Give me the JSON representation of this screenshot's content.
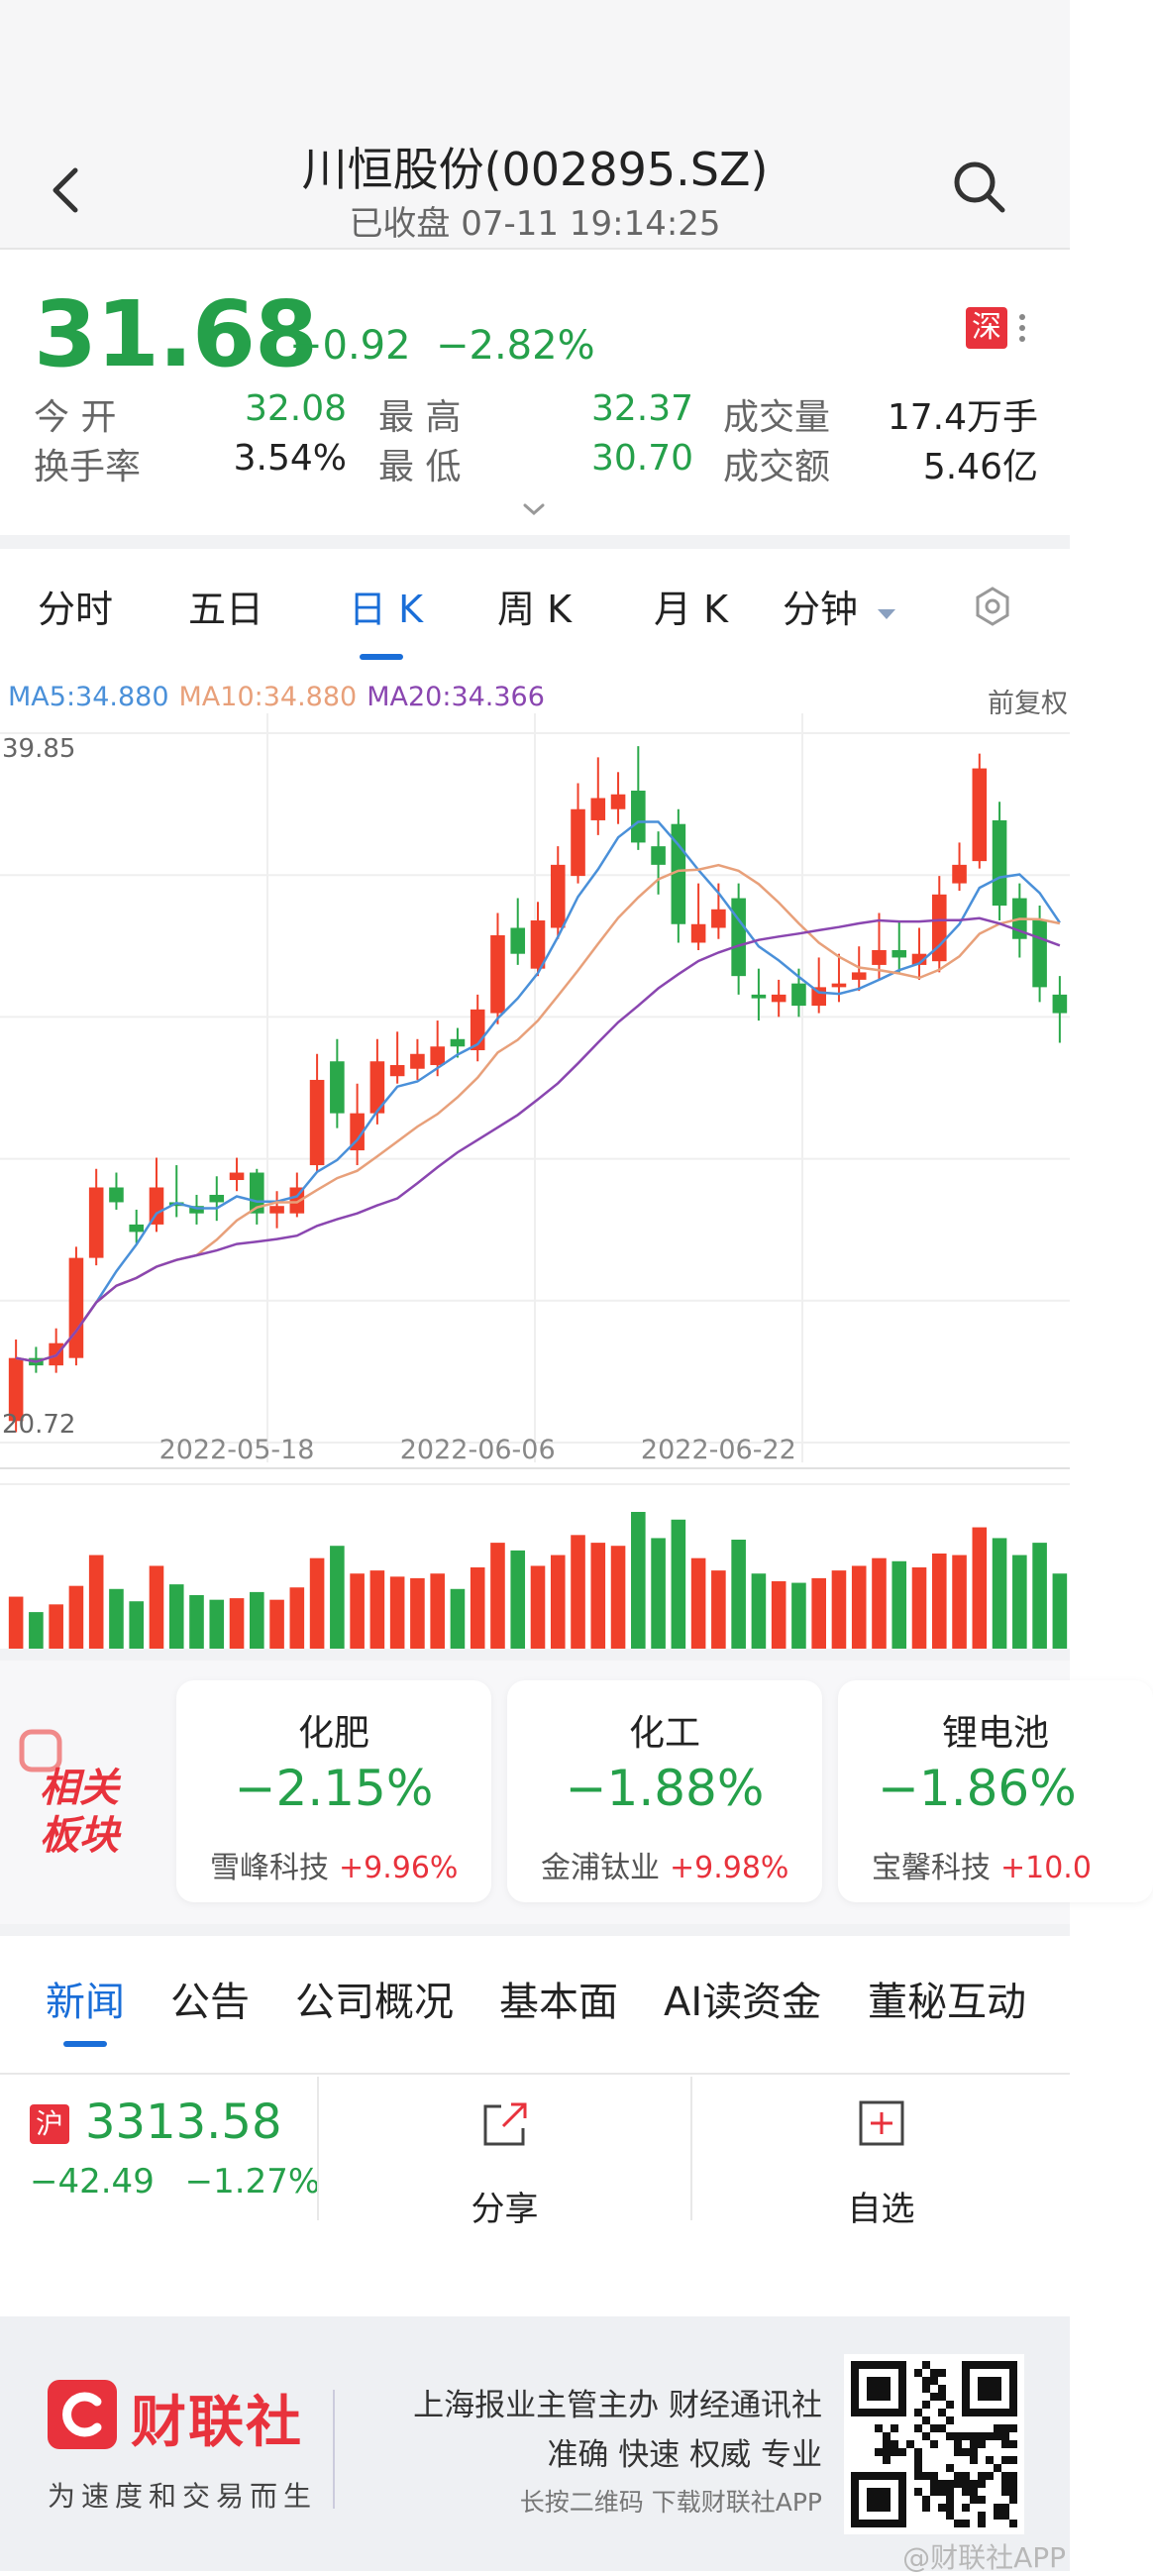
{
  "header": {
    "title": "川恒股份(002895.SZ)",
    "subtitle": "已收盘 07-11 19:14:25"
  },
  "quote": {
    "price": "31.68",
    "change": "−0.92",
    "change_pct": "−2.82%",
    "exchange": "深",
    "rows": [
      {
        "label": "今  开",
        "value": "32.08",
        "color": "green"
      },
      {
        "label": "最  高",
        "value": "32.37",
        "color": "green"
      },
      {
        "label": "成交量",
        "value": "17.4万手",
        "color": "normal"
      },
      {
        "label": "换手率",
        "value": "3.54%",
        "color": "normal"
      },
      {
        "label": "最  低",
        "value": "30.70",
        "color": "green"
      },
      {
        "label": "成交额",
        "value": "5.46亿",
        "color": "normal"
      }
    ]
  },
  "tabs": {
    "items": [
      "分时",
      "五日",
      "日 K",
      "周 K",
      "月 K",
      "分钟"
    ],
    "active_index": 2
  },
  "chart_legend": {
    "ma5": "MA5:34.880",
    "ma10": "MA10:34.880",
    "ma20": "MA20:34.366",
    "adjust": "前复权"
  },
  "chart_data": {
    "type": "candlestick",
    "y_axis_top_label": "39.85",
    "y_axis_bottom_label": "20.72",
    "ylim": [
      20.72,
      39.85
    ],
    "x_tick_labels": [
      "2022-05-18",
      "2022-06-06",
      "2022-06-22"
    ],
    "x_tick_indices": [
      11,
      23,
      35
    ],
    "colors": {
      "up": "#f0402a",
      "down": "#2aa84a",
      "ma5": "#4a90d9",
      "ma10": "#e8a07a",
      "ma20": "#8a46b0"
    },
    "candles": [
      {
        "o": 21.3,
        "c": 23.0,
        "h": 23.5,
        "l": 21.0,
        "v": 0.35
      },
      {
        "o": 23.0,
        "c": 22.8,
        "h": 23.3,
        "l": 22.6,
        "v": 0.25
      },
      {
        "o": 22.8,
        "c": 23.4,
        "h": 23.8,
        "l": 22.6,
        "v": 0.3
      },
      {
        "o": 23.0,
        "c": 25.7,
        "h": 26.0,
        "l": 22.8,
        "v": 0.42
      },
      {
        "o": 25.7,
        "c": 27.6,
        "h": 28.1,
        "l": 25.5,
        "v": 0.62
      },
      {
        "o": 27.6,
        "c": 27.2,
        "h": 28.0,
        "l": 27.0,
        "v": 0.4
      },
      {
        "o": 26.6,
        "c": 26.4,
        "h": 27.0,
        "l": 26.1,
        "v": 0.32
      },
      {
        "o": 26.6,
        "c": 27.6,
        "h": 28.4,
        "l": 26.4,
        "v": 0.55
      },
      {
        "o": 27.2,
        "c": 27.1,
        "h": 28.2,
        "l": 26.8,
        "v": 0.43
      },
      {
        "o": 27.1,
        "c": 26.9,
        "h": 27.4,
        "l": 26.6,
        "v": 0.36
      },
      {
        "o": 27.4,
        "c": 27.2,
        "h": 27.9,
        "l": 26.7,
        "v": 0.33
      },
      {
        "o": 27.8,
        "c": 28.0,
        "h": 28.4,
        "l": 27.5,
        "v": 0.34
      },
      {
        "o": 28.0,
        "c": 26.9,
        "h": 28.1,
        "l": 26.6,
        "v": 0.38
      },
      {
        "o": 26.9,
        "c": 27.1,
        "h": 27.5,
        "l": 26.5,
        "v": 0.33
      },
      {
        "o": 26.9,
        "c": 27.6,
        "h": 28.0,
        "l": 26.8,
        "v": 0.41
      },
      {
        "o": 28.2,
        "c": 30.5,
        "h": 31.2,
        "l": 28.0,
        "v": 0.6
      },
      {
        "o": 31.0,
        "c": 29.6,
        "h": 31.6,
        "l": 29.2,
        "v": 0.68
      },
      {
        "o": 28.6,
        "c": 29.6,
        "h": 30.4,
        "l": 28.2,
        "v": 0.5
      },
      {
        "o": 29.6,
        "c": 31.0,
        "h": 31.6,
        "l": 29.3,
        "v": 0.52
      },
      {
        "o": 30.6,
        "c": 30.9,
        "h": 31.8,
        "l": 30.4,
        "v": 0.48
      },
      {
        "o": 30.8,
        "c": 31.2,
        "h": 31.6,
        "l": 30.5,
        "v": 0.47
      },
      {
        "o": 30.9,
        "c": 31.4,
        "h": 32.1,
        "l": 30.6,
        "v": 0.5
      },
      {
        "o": 31.6,
        "c": 31.4,
        "h": 31.9,
        "l": 31.1,
        "v": 0.4
      },
      {
        "o": 31.3,
        "c": 32.4,
        "h": 32.8,
        "l": 31.0,
        "v": 0.54
      },
      {
        "o": 32.3,
        "c": 34.4,
        "h": 35.0,
        "l": 32.0,
        "v": 0.7
      },
      {
        "o": 34.6,
        "c": 33.9,
        "h": 35.4,
        "l": 33.6,
        "v": 0.65
      },
      {
        "o": 33.5,
        "c": 34.8,
        "h": 35.3,
        "l": 33.3,
        "v": 0.55
      },
      {
        "o": 34.6,
        "c": 36.3,
        "h": 36.8,
        "l": 34.3,
        "v": 0.62
      },
      {
        "o": 36.0,
        "c": 37.8,
        "h": 38.5,
        "l": 35.8,
        "v": 0.75
      },
      {
        "o": 37.5,
        "c": 38.1,
        "h": 39.2,
        "l": 37.1,
        "v": 0.7
      },
      {
        "o": 37.8,
        "c": 38.2,
        "h": 38.8,
        "l": 37.4,
        "v": 0.68
      },
      {
        "o": 38.3,
        "c": 36.9,
        "h": 39.5,
        "l": 36.7,
        "v": 0.9
      },
      {
        "o": 36.8,
        "c": 36.3,
        "h": 37.2,
        "l": 35.5,
        "v": 0.73
      },
      {
        "o": 37.4,
        "c": 34.7,
        "h": 37.8,
        "l": 34.2,
        "v": 0.85
      },
      {
        "o": 34.2,
        "c": 34.7,
        "h": 35.8,
        "l": 34.0,
        "v": 0.6
      },
      {
        "o": 34.6,
        "c": 35.1,
        "h": 35.8,
        "l": 34.3,
        "v": 0.52
      },
      {
        "o": 35.4,
        "c": 33.3,
        "h": 35.8,
        "l": 32.8,
        "v": 0.72
      },
      {
        "o": 32.8,
        "c": 32.7,
        "h": 33.5,
        "l": 32.1,
        "v": 0.5
      },
      {
        "o": 32.6,
        "c": 32.8,
        "h": 33.2,
        "l": 32.2,
        "v": 0.45
      },
      {
        "o": 33.1,
        "c": 32.5,
        "h": 33.5,
        "l": 32.2,
        "v": 0.44
      },
      {
        "o": 32.5,
        "c": 33.0,
        "h": 33.8,
        "l": 32.3,
        "v": 0.47
      },
      {
        "o": 33.0,
        "c": 33.1,
        "h": 33.9,
        "l": 32.6,
        "v": 0.52
      },
      {
        "o": 33.2,
        "c": 33.4,
        "h": 34.1,
        "l": 32.9,
        "v": 0.55
      },
      {
        "o": 33.6,
        "c": 34.0,
        "h": 35.0,
        "l": 33.2,
        "v": 0.6
      },
      {
        "o": 34.0,
        "c": 33.8,
        "h": 34.8,
        "l": 33.4,
        "v": 0.58
      },
      {
        "o": 33.6,
        "c": 33.9,
        "h": 34.6,
        "l": 33.2,
        "v": 0.54
      },
      {
        "o": 33.7,
        "c": 35.5,
        "h": 36.0,
        "l": 33.4,
        "v": 0.63
      },
      {
        "o": 35.8,
        "c": 36.3,
        "h": 36.9,
        "l": 35.6,
        "v": 0.62
      },
      {
        "o": 36.4,
        "c": 38.9,
        "h": 39.3,
        "l": 36.2,
        "v": 0.8
      },
      {
        "o": 37.5,
        "c": 35.2,
        "h": 38.0,
        "l": 34.8,
        "v": 0.73
      },
      {
        "o": 35.4,
        "c": 34.3,
        "h": 35.8,
        "l": 33.8,
        "v": 0.62
      },
      {
        "o": 34.8,
        "c": 33.0,
        "h": 35.2,
        "l": 32.6,
        "v": 0.7
      },
      {
        "o": 32.8,
        "c": 32.3,
        "h": 33.3,
        "l": 31.5,
        "v": 0.5
      }
    ]
  },
  "sectors": {
    "logo_line1": "相关",
    "logo_line2": "板块",
    "items": [
      {
        "name": "化肥",
        "change": "−2.15%",
        "stock": "雪峰科技",
        "stock_change": "+9.96%"
      },
      {
        "name": "化工",
        "change": "−1.88%",
        "stock": "金浦钛业",
        "stock_change": "+9.98%"
      },
      {
        "name": "锂电池",
        "change": "−1.86%",
        "stock": "宝馨科技",
        "stock_change": "+10.0"
      }
    ]
  },
  "news_tabs": [
    "新闻",
    "公告",
    "公司概况",
    "基本面",
    "AI读资金",
    "董秘互动"
  ],
  "bottom_bar": {
    "index_badge": "沪",
    "index_value": "3313.58",
    "index_change": "−42.49",
    "index_change_pct": "−1.27%",
    "share_label": "分享",
    "fav_label": "自选"
  },
  "footer": {
    "brand_name": "财联社",
    "slogan": "为速度和交易而生",
    "line1": "上海报业主管主办 财经通讯社",
    "line2": "准确 快速 权威 专业",
    "line3": "长按二维码 下载财联社APP",
    "watermark": "@财联社APP"
  }
}
